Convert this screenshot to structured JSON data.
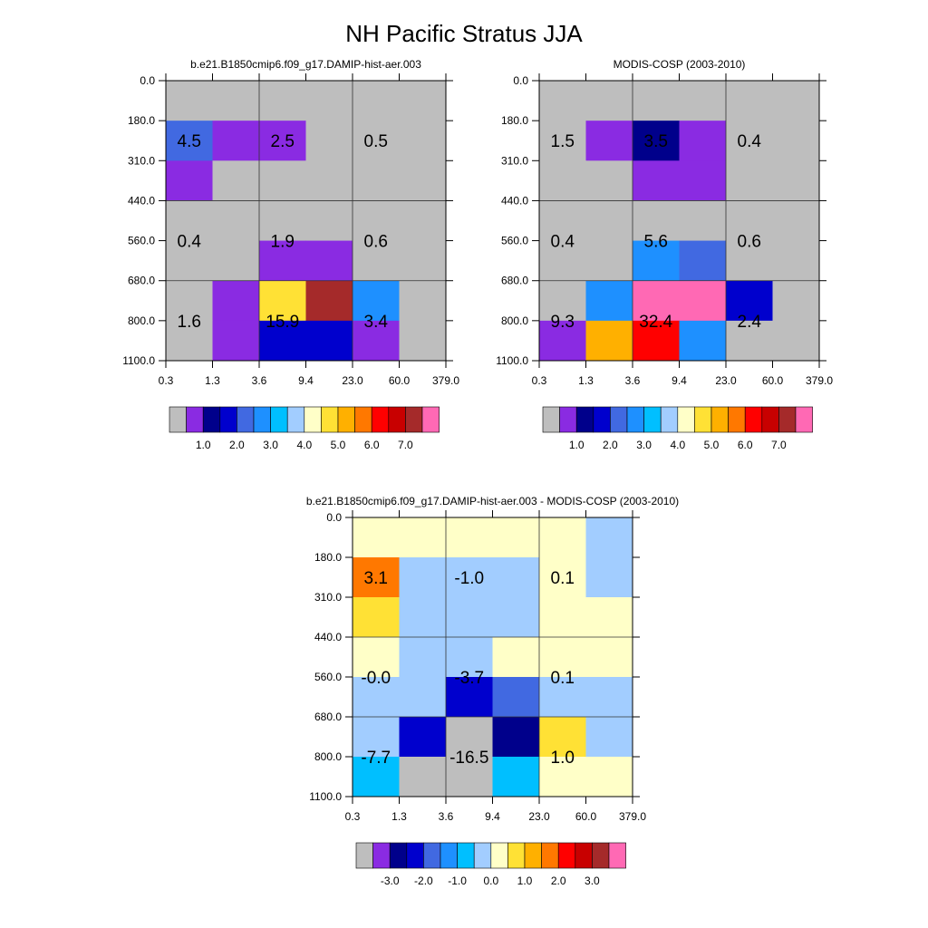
{
  "title": "NH Pacific Stratus JJA",
  "palette": {
    "colors": [
      "#bebebe",
      "#8a2be2",
      "#00008b",
      "#0000cd",
      "#4169e1",
      "#1e90ff",
      "#00bfff",
      "#a2cdff",
      "#ffffc8",
      "#ffe135",
      "#ffb000",
      "#ff7800",
      "#ff0000",
      "#c80000",
      "#a52a2a",
      "#ff69b4"
    ]
  },
  "chart_data": [
    {
      "type": "heatmap",
      "title": "b.e21.B1850cmip6.f09_g17.DAMIP-hist-aer.003",
      "x_edges": [
        "0.3",
        "1.3",
        "3.6",
        "9.4",
        "23.0",
        "60.0",
        "379.0"
      ],
      "y_edges": [
        "0.0",
        "180.0",
        "310.0",
        "440.0",
        "560.0",
        "680.0",
        "800.0",
        "1100.0"
      ],
      "cells": [
        [
          0,
          0,
          0,
          0,
          0,
          0
        ],
        [
          4,
          1,
          1,
          0,
          0,
          0
        ],
        [
          1,
          0,
          0,
          0,
          0,
          0
        ],
        [
          0,
          0,
          0,
          0,
          0,
          0
        ],
        [
          0,
          0,
          1,
          1,
          0,
          0
        ],
        [
          0,
          1,
          9,
          14,
          5,
          0
        ],
        [
          0,
          1,
          3,
          3,
          1,
          0
        ]
      ],
      "labels": [
        {
          "col": 0.5,
          "row": 1.5,
          "text": "4.5"
        },
        {
          "col": 2.5,
          "row": 1.5,
          "text": "2.5"
        },
        {
          "col": 4.5,
          "row": 1.5,
          "text": "0.5"
        },
        {
          "col": 0.5,
          "row": 4.0,
          "text": "0.4"
        },
        {
          "col": 2.5,
          "row": 4.0,
          "text": "1.9"
        },
        {
          "col": 4.5,
          "row": 4.0,
          "text": "0.6"
        },
        {
          "col": 0.5,
          "row": 6.0,
          "text": "1.6"
        },
        {
          "col": 2.5,
          "row": 6.0,
          "text": "15.9"
        },
        {
          "col": 4.5,
          "row": 6.0,
          "text": "3.4"
        }
      ],
      "colorbar": {
        "tick_labels": [
          "1.0",
          "2.0",
          "3.0",
          "4.0",
          "5.0",
          "6.0",
          "7.0"
        ]
      }
    },
    {
      "type": "heatmap",
      "title": "MODIS-COSP (2003-2010)",
      "x_edges": [
        "0.3",
        "1.3",
        "3.6",
        "9.4",
        "23.0",
        "60.0",
        "379.0"
      ],
      "y_edges": [
        "0.0",
        "180.0",
        "310.0",
        "440.0",
        "560.0",
        "680.0",
        "800.0",
        "1100.0"
      ],
      "cells": [
        [
          0,
          0,
          0,
          0,
          0,
          0
        ],
        [
          0,
          1,
          2,
          1,
          0,
          0
        ],
        [
          0,
          0,
          1,
          1,
          0,
          0
        ],
        [
          0,
          0,
          0,
          0,
          0,
          0
        ],
        [
          0,
          0,
          5,
          4,
          0,
          0
        ],
        [
          0,
          5,
          15,
          15,
          3,
          0
        ],
        [
          1,
          10,
          12,
          5,
          0,
          0
        ]
      ],
      "labels": [
        {
          "col": 0.5,
          "row": 1.5,
          "text": "1.5"
        },
        {
          "col": 2.5,
          "row": 1.5,
          "text": "3.5"
        },
        {
          "col": 4.5,
          "row": 1.5,
          "text": "0.4"
        },
        {
          "col": 0.5,
          "row": 4.0,
          "text": "0.4"
        },
        {
          "col": 2.5,
          "row": 4.0,
          "text": "5.6"
        },
        {
          "col": 4.5,
          "row": 4.0,
          "text": "0.6"
        },
        {
          "col": 0.5,
          "row": 6.0,
          "text": "9.3"
        },
        {
          "col": 2.5,
          "row": 6.0,
          "text": "32.4"
        },
        {
          "col": 4.5,
          "row": 6.0,
          "text": "2.4"
        }
      ],
      "colorbar": {
        "tick_labels": [
          "1.0",
          "2.0",
          "3.0",
          "4.0",
          "5.0",
          "6.0",
          "7.0"
        ]
      }
    },
    {
      "type": "heatmap",
      "title": "b.e21.B1850cmip6.f09_g17.DAMIP-hist-aer.003 - MODIS-COSP (2003-2010)",
      "x_edges": [
        "0.3",
        "1.3",
        "3.6",
        "9.4",
        "23.0",
        "60.0",
        "379.0"
      ],
      "y_edges": [
        "0.0",
        "180.0",
        "310.0",
        "440.0",
        "560.0",
        "680.0",
        "800.0",
        "1100.0"
      ],
      "cells": [
        [
          8,
          8,
          8,
          8,
          8,
          7
        ],
        [
          11,
          7,
          7,
          7,
          8,
          7
        ],
        [
          9,
          7,
          7,
          7,
          8,
          8
        ],
        [
          8,
          7,
          7,
          8,
          8,
          8
        ],
        [
          7,
          7,
          3,
          4,
          7,
          7
        ],
        [
          7,
          3,
          0,
          2,
          9,
          7
        ],
        [
          6,
          0,
          0,
          6,
          8,
          8
        ]
      ],
      "labels": [
        {
          "col": 0.5,
          "row": 1.5,
          "text": "3.1"
        },
        {
          "col": 2.5,
          "row": 1.5,
          "text": "-1.0"
        },
        {
          "col": 4.5,
          "row": 1.5,
          "text": "0.1"
        },
        {
          "col": 0.5,
          "row": 4.0,
          "text": "-0.0"
        },
        {
          "col": 2.5,
          "row": 4.0,
          "text": "-3.7"
        },
        {
          "col": 4.5,
          "row": 4.0,
          "text": "0.1"
        },
        {
          "col": 0.5,
          "row": 6.0,
          "text": "-7.7"
        },
        {
          "col": 2.5,
          "row": 6.0,
          "text": "-16.5"
        },
        {
          "col": 4.5,
          "row": 6.0,
          "text": "1.0"
        }
      ],
      "colorbar": {
        "tick_labels": [
          "-3.0",
          "-2.0",
          "-1.0",
          "0.0",
          "1.0",
          "2.0",
          "3.0"
        ]
      }
    }
  ]
}
